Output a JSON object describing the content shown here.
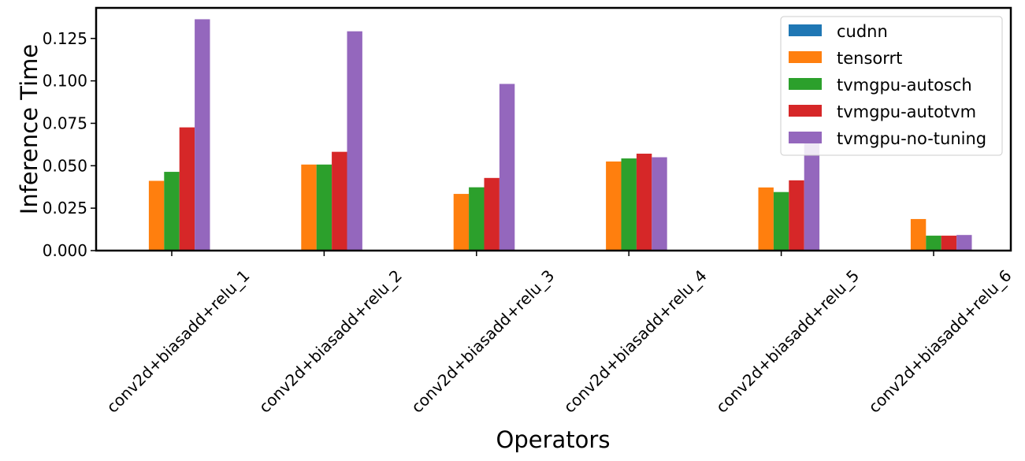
{
  "chart_data": {
    "type": "bar",
    "xlabel": "Operators",
    "ylabel": "Inference Time",
    "ylim": [
      0,
      0.143
    ],
    "yticks": [
      "0.000",
      "0.025",
      "0.050",
      "0.075",
      "0.100",
      "0.125"
    ],
    "grid": false,
    "legend_position": "top-right",
    "categories": [
      "conv2d+biasadd+relu_1",
      "conv2d+biasadd+relu_2",
      "conv2d+biasadd+relu_3",
      "conv2d+biasadd+relu_4",
      "conv2d+biasadd+relu_5",
      "conv2d+biasadd+relu_6"
    ],
    "series": [
      {
        "name": "cudnn",
        "color": "#1f77b4",
        "values": [
          0,
          0,
          0,
          0,
          0,
          0
        ]
      },
      {
        "name": "tensorrt",
        "color": "#ff7f0e",
        "values": [
          0.0411,
          0.0507,
          0.0334,
          0.0525,
          0.0372,
          0.0186
        ]
      },
      {
        "name": "tvmgpu-autosch",
        "color": "#2ca02c",
        "values": [
          0.0464,
          0.0507,
          0.0373,
          0.0543,
          0.0345,
          0.0088
        ]
      },
      {
        "name": "tvmgpu-autotvm",
        "color": "#d62728",
        "values": [
          0.0726,
          0.0582,
          0.0428,
          0.0571,
          0.0414,
          0.0088
        ]
      },
      {
        "name": "tvmgpu-no-tuning",
        "color": "#9467bd",
        "values": [
          0.1363,
          0.1292,
          0.0982,
          0.055,
          0.0638,
          0.0092
        ]
      }
    ]
  }
}
